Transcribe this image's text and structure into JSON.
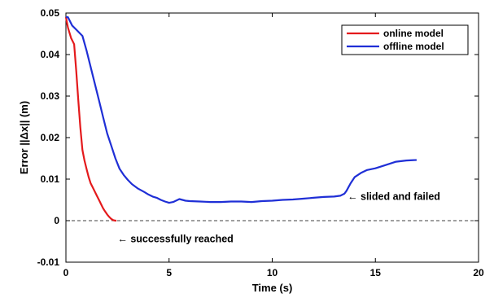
{
  "chart_data": {
    "type": "line",
    "xlabel": "Time  (s)",
    "ylabel": "Error   ||Δx||   (m)",
    "xlim": [
      0,
      20
    ],
    "ylim": [
      -0.01,
      0.05
    ],
    "xticks": [
      0,
      5,
      10,
      15,
      20
    ],
    "yticks": [
      -0.01,
      0,
      0.01,
      0.02,
      0.03,
      0.04,
      0.05
    ],
    "xtick_labels": [
      "0",
      "5",
      "10",
      "15",
      "20"
    ],
    "ytick_labels": [
      "-0.01",
      "0",
      "0.01",
      "0.02",
      "0.03",
      "0.04",
      "0.05"
    ],
    "grid": false,
    "legend_position": "top-right",
    "reference_line": {
      "y": 0,
      "style": "dashed"
    },
    "series": [
      {
        "name": "online model",
        "color": "#e41a1c",
        "x": [
          0.0,
          0.1,
          0.25,
          0.4,
          0.5,
          0.6,
          0.7,
          0.8,
          0.9,
          1.0,
          1.1,
          1.2,
          1.3,
          1.4,
          1.5,
          1.6,
          1.7,
          1.8,
          1.9,
          2.0,
          2.1,
          2.2,
          2.3,
          2.4,
          2.45
        ],
        "y": [
          0.049,
          0.0465,
          0.044,
          0.0425,
          0.036,
          0.029,
          0.0225,
          0.017,
          0.0145,
          0.0125,
          0.0105,
          0.009,
          0.008,
          0.007,
          0.006,
          0.005,
          0.004,
          0.003,
          0.0022,
          0.0015,
          0.0009,
          0.0004,
          0.0001,
          0.0,
          0.0
        ]
      },
      {
        "name": "offline model",
        "color": "#1f2fd6",
        "x": [
          0.0,
          0.1,
          0.3,
          0.5,
          0.8,
          1.0,
          1.2,
          1.4,
          1.6,
          1.8,
          2.0,
          2.2,
          2.4,
          2.6,
          2.8,
          3.0,
          3.2,
          3.5,
          3.8,
          4.0,
          4.2,
          4.4,
          4.6,
          4.8,
          5.0,
          5.2,
          5.5,
          5.8,
          6.0,
          6.5,
          7.0,
          7.5,
          8.0,
          8.5,
          9.0,
          9.5,
          10.0,
          10.5,
          11.0,
          11.5,
          12.0,
          12.5,
          13.0,
          13.3,
          13.5,
          13.6,
          13.8,
          14.0,
          14.3,
          14.6,
          15.0,
          15.5,
          16.0,
          16.5,
          17.0
        ],
        "y": [
          0.049,
          0.049,
          0.047,
          0.046,
          0.0445,
          0.041,
          0.037,
          0.033,
          0.029,
          0.025,
          0.021,
          0.018,
          0.015,
          0.0125,
          0.011,
          0.0098,
          0.0088,
          0.0077,
          0.0069,
          0.0063,
          0.0058,
          0.0055,
          0.005,
          0.0046,
          0.0043,
          0.0045,
          0.0052,
          0.0048,
          0.0047,
          0.0046,
          0.0045,
          0.0045,
          0.0046,
          0.0046,
          0.0045,
          0.0047,
          0.0048,
          0.005,
          0.0051,
          0.0053,
          0.0055,
          0.0057,
          0.0058,
          0.006,
          0.0065,
          0.0072,
          0.009,
          0.0105,
          0.0115,
          0.0122,
          0.0126,
          0.0134,
          0.0142,
          0.0145,
          0.0146
        ]
      }
    ],
    "annotations": [
      {
        "text": "← slided and failed",
        "x": 13.65,
        "y": 0.0058
      },
      {
        "text": "← successfully reached",
        "x": 2.5,
        "y": -0.0044
      }
    ]
  }
}
